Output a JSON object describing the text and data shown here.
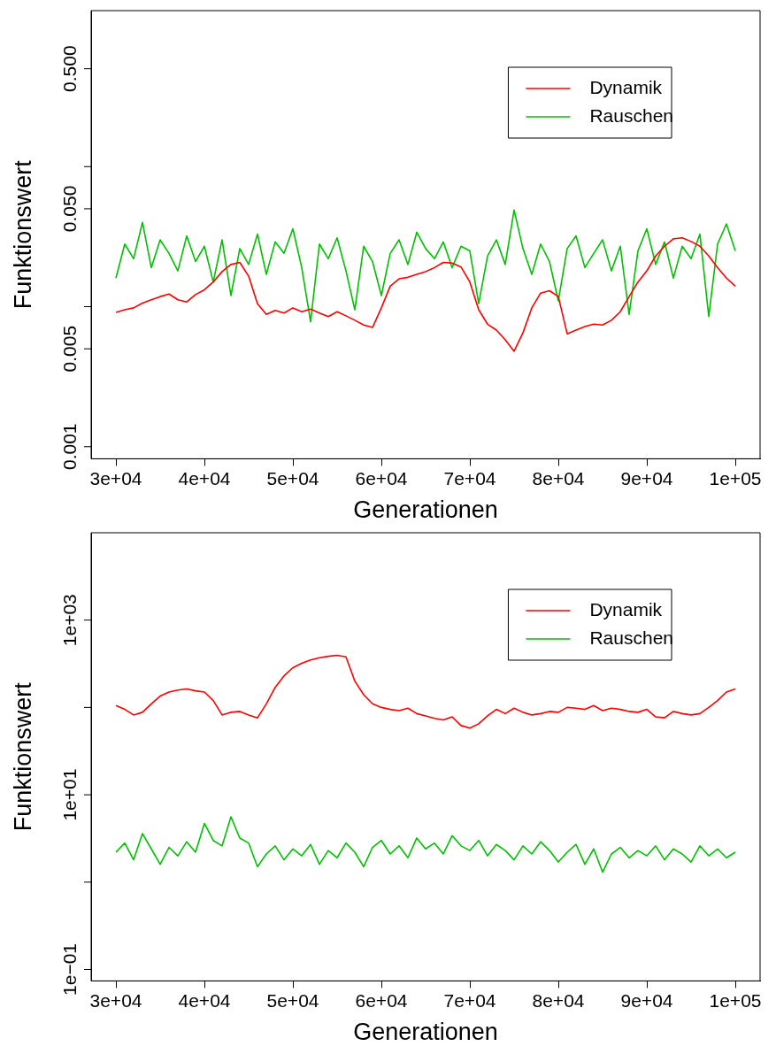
{
  "chart_data": [
    {
      "type": "line",
      "xlabel": "Generationen",
      "ylabel": "Funktionswert",
      "log": "y",
      "grid": false,
      "legend": "top right",
      "marker": "none",
      "line_style": "solid",
      "xlim": [
        27200,
        102800
      ],
      "xticks": [
        {
          "value": 30000,
          "label": "3e+04"
        },
        {
          "value": 40000,
          "label": "4e+04"
        },
        {
          "value": 50000,
          "label": "5e+04"
        },
        {
          "value": 60000,
          "label": "6e+04"
        },
        {
          "value": 70000,
          "label": "7e+04"
        },
        {
          "value": 80000,
          "label": "8e+04"
        },
        {
          "value": 90000,
          "label": "9e+04"
        },
        {
          "value": 100000,
          "label": "1e+05"
        }
      ],
      "ylim": [
        0.00082,
        1.3
      ],
      "yticks": [
        {
          "value": 0.001,
          "label": "0.001"
        },
        {
          "value": 0.005,
          "label": "0.005"
        },
        {
          "value": 0.01,
          "label": null
        },
        {
          "value": 0.05,
          "label": "0.050"
        },
        {
          "value": 0.1,
          "label": null
        },
        {
          "value": 0.5,
          "label": "0.500"
        }
      ],
      "x": [
        30000,
        31000,
        32000,
        33000,
        34000,
        35000,
        36000,
        37000,
        38000,
        39000,
        40000,
        41000,
        42000,
        43000,
        44000,
        45000,
        46000,
        47000,
        48000,
        49000,
        50000,
        51000,
        52000,
        53000,
        54000,
        55000,
        56000,
        57000,
        58000,
        59000,
        60000,
        61000,
        62000,
        63000,
        64000,
        65000,
        66000,
        67000,
        68000,
        69000,
        70000,
        71000,
        72000,
        73000,
        74000,
        75000,
        76000,
        77000,
        78000,
        79000,
        80000,
        81000,
        82000,
        83000,
        84000,
        85000,
        86000,
        87000,
        88000,
        89000,
        90000,
        91000,
        92000,
        93000,
        94000,
        95000,
        96000,
        97000,
        98000,
        99000,
        100000
      ],
      "series": [
        {
          "name": "Dynamik",
          "color": "#ff0000",
          "values": [
            0.0091,
            0.0095,
            0.0098,
            0.0106,
            0.0112,
            0.0118,
            0.0123,
            0.0112,
            0.0108,
            0.0122,
            0.0132,
            0.015,
            0.0178,
            0.02,
            0.0207,
            0.0165,
            0.0105,
            0.0088,
            0.0094,
            0.009,
            0.0098,
            0.0092,
            0.0096,
            0.009,
            0.0085,
            0.0092,
            0.0086,
            0.008,
            0.0074,
            0.0071,
            0.0098,
            0.014,
            0.0158,
            0.0162,
            0.017,
            0.0178,
            0.019,
            0.0207,
            0.0205,
            0.0192,
            0.015,
            0.0095,
            0.0075,
            0.0068,
            0.0058,
            0.0048,
            0.0065,
            0.0098,
            0.0125,
            0.013,
            0.0118,
            0.0064,
            0.0068,
            0.0072,
            0.0075,
            0.0074,
            0.008,
            0.0092,
            0.0118,
            0.015,
            0.018,
            0.023,
            0.027,
            0.0305,
            0.031,
            0.0292,
            0.027,
            0.023,
            0.019,
            0.016,
            0.014
          ]
        },
        {
          "name": "Rauschen",
          "color": "#00c000",
          "values": [
            0.016,
            0.028,
            0.022,
            0.04,
            0.019,
            0.03,
            0.024,
            0.018,
            0.032,
            0.021,
            0.027,
            0.015,
            0.03,
            0.012,
            0.026,
            0.02,
            0.033,
            0.017,
            0.029,
            0.024,
            0.036,
            0.019,
            0.0078,
            0.028,
            0.022,
            0.031,
            0.018,
            0.0095,
            0.027,
            0.021,
            0.012,
            0.024,
            0.03,
            0.02,
            0.034,
            0.026,
            0.022,
            0.029,
            0.019,
            0.027,
            0.025,
            0.0105,
            0.023,
            0.03,
            0.02,
            0.049,
            0.026,
            0.017,
            0.028,
            0.021,
            0.011,
            0.026,
            0.032,
            0.019,
            0.024,
            0.03,
            0.018,
            0.027,
            0.0088,
            0.025,
            0.036,
            0.02,
            0.029,
            0.016,
            0.027,
            0.022,
            0.033,
            0.0085,
            0.028,
            0.039,
            0.025
          ]
        }
      ]
    },
    {
      "type": "line",
      "xlabel": "Generationen",
      "ylabel": "Funktionswert",
      "log": "y",
      "grid": false,
      "legend": "top right",
      "marker": "none",
      "line_style": "solid",
      "xlim": [
        27200,
        102800
      ],
      "xticks": [
        {
          "value": 30000,
          "label": "3e+04"
        },
        {
          "value": 40000,
          "label": "4e+04"
        },
        {
          "value": 50000,
          "label": "5e+04"
        },
        {
          "value": 60000,
          "label": "6e+04"
        },
        {
          "value": 70000,
          "label": "7e+04"
        },
        {
          "value": 80000,
          "label": "8e+04"
        },
        {
          "value": 90000,
          "label": "9e+04"
        },
        {
          "value": 100000,
          "label": "1e+05"
        }
      ],
      "ylim": [
        0.074,
        10000
      ],
      "yticks": [
        {
          "value": 0.1,
          "label": "1e−01"
        },
        {
          "value": 1,
          "label": null
        },
        {
          "value": 10,
          "label": "1e+01"
        },
        {
          "value": 100,
          "label": null
        },
        {
          "value": 1000,
          "label": "1e+03"
        }
      ],
      "x": [
        30000,
        31000,
        32000,
        33000,
        34000,
        35000,
        36000,
        37000,
        38000,
        39000,
        40000,
        41000,
        42000,
        43000,
        44000,
        45000,
        46000,
        47000,
        48000,
        49000,
        50000,
        51000,
        52000,
        53000,
        54000,
        55000,
        56000,
        57000,
        58000,
        59000,
        60000,
        61000,
        62000,
        63000,
        64000,
        65000,
        66000,
        67000,
        68000,
        69000,
        70000,
        71000,
        72000,
        73000,
        74000,
        75000,
        76000,
        77000,
        78000,
        79000,
        80000,
        81000,
        82000,
        83000,
        84000,
        85000,
        86000,
        87000,
        88000,
        89000,
        90000,
        91000,
        92000,
        93000,
        94000,
        95000,
        96000,
        97000,
        98000,
        99000,
        100000
      ],
      "series": [
        {
          "name": "Dynamik",
          "color": "#ff0000",
          "values": [
            105,
            95,
            82,
            88,
            110,
            135,
            150,
            158,
            163,
            155,
            150,
            120,
            82,
            88,
            90,
            82,
            76,
            110,
            170,
            230,
            285,
            320,
            350,
            370,
            385,
            395,
            380,
            200,
            140,
            110,
            100,
            95,
            92,
            98,
            85,
            80,
            75,
            72,
            78,
            62,
            58,
            65,
            80,
            95,
            85,
            98,
            88,
            82,
            85,
            90,
            88,
            100,
            98,
            95,
            105,
            92,
            98,
            95,
            90,
            88,
            95,
            78,
            76,
            90,
            85,
            82,
            85,
            100,
            120,
            150,
            163
          ]
        },
        {
          "name": "Rauschen",
          "color": "#00c000",
          "values": [
            2.2,
            2.8,
            1.8,
            3.6,
            2.4,
            1.6,
            2.5,
            2.0,
            2.9,
            2.2,
            4.7,
            3.0,
            2.6,
            5.6,
            3.2,
            2.8,
            1.5,
            2.1,
            2.6,
            1.8,
            2.4,
            2.0,
            2.7,
            1.6,
            2.3,
            1.9,
            2.8,
            2.2,
            1.5,
            2.5,
            3.0,
            2.1,
            2.6,
            1.9,
            3.2,
            2.4,
            2.8,
            2.1,
            3.4,
            2.6,
            2.3,
            3.0,
            2.0,
            2.7,
            2.3,
            1.8,
            2.6,
            2.1,
            2.9,
            2.3,
            1.7,
            2.2,
            2.7,
            1.6,
            2.4,
            1.3,
            2.1,
            2.5,
            1.9,
            2.3,
            2.0,
            2.6,
            1.8,
            2.4,
            2.1,
            1.7,
            2.6,
            2.0,
            2.4,
            1.9,
            2.2
          ]
        }
      ]
    }
  ]
}
